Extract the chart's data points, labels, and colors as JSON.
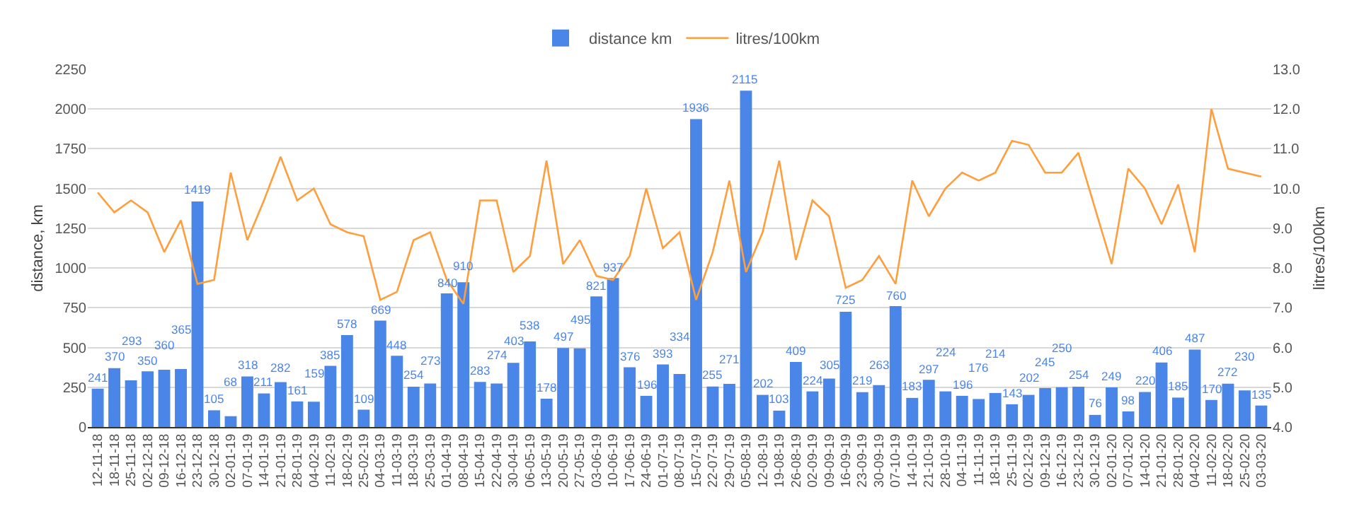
{
  "chart_data": {
    "type": "bar",
    "categories": [
      "12-11-18",
      "18-11-18",
      "25-11-18",
      "02-12-18",
      "09-12-18",
      "16-12-18",
      "23-12-18",
      "30-12-18",
      "02-01-19",
      "07-01-19",
      "14-01-19",
      "21-01-19",
      "28-01-19",
      "04-02-19",
      "11-02-19",
      "18-02-19",
      "25-02-19",
      "04-03-19",
      "11-03-19",
      "18-03-19",
      "25-03-19",
      "01-04-19",
      "08-04-19",
      "15-04-19",
      "22-04-19",
      "30-04-19",
      "06-05-19",
      "13-05-19",
      "20-05-19",
      "27-05-19",
      "03-06-19",
      "10-06-19",
      "17-06-19",
      "24-06-19",
      "01-07-19",
      "08-07-19",
      "15-07-19",
      "22-07-19",
      "29-07-19",
      "05-08-19",
      "12-08-19",
      "19-08-19",
      "26-08-19",
      "02-09-19",
      "09-09-19",
      "16-09-19",
      "23-09-19",
      "30-09-19",
      "07-10-19",
      "14-10-19",
      "21-10-19",
      "28-10-19",
      "04-11-19",
      "11-11-19",
      "18-11-19",
      "25-11-19",
      "02-12-19",
      "09-12-19",
      "16-12-19",
      "23-12-19",
      "30-12-19",
      "02-01-20",
      "07-01-20",
      "14-01-20",
      "21-01-20",
      "28-01-20",
      "04-02-20",
      "11-02-20",
      "18-02-20",
      "25-02-20",
      "03-03-20"
    ],
    "series": [
      {
        "name": "distance km",
        "color": "#4a86e8",
        "values": [
          241,
          370,
          293,
          350,
          360,
          365,
          1419,
          105,
          68,
          318,
          211,
          282,
          161,
          159,
          385,
          578,
          109,
          669,
          448,
          254,
          273,
          840,
          910,
          283,
          274,
          403,
          538,
          178,
          497,
          495,
          821,
          937,
          376,
          196,
          393,
          334,
          1936,
          255,
          271,
          2115,
          202,
          103,
          409,
          224,
          305,
          725,
          219,
          263,
          760,
          183,
          297,
          224,
          196,
          176,
          214,
          143,
          202,
          245,
          250,
          254,
          76,
          249,
          98,
          220,
          406,
          185,
          487,
          170,
          272,
          230,
          135
        ],
        "value_labels": [
          "241",
          "370",
          "293",
          "350",
          "360",
          "365",
          "1419",
          "105",
          "68",
          "318",
          "211",
          "282",
          "161",
          "159",
          "385",
          "578",
          "109",
          "669",
          "448",
          "254",
          "273",
          "840",
          "910",
          "283",
          "274",
          "403",
          "538",
          "178",
          "497",
          "495",
          "821",
          "937",
          "376",
          "196",
          "393",
          "334",
          "1936",
          "255",
          "271",
          "2115",
          "202",
          "103",
          "409",
          "224",
          "305",
          "725",
          "219",
          "263",
          "760",
          "183",
          "297",
          "224",
          "196",
          "176",
          "214",
          "143",
          "202",
          "245",
          "250",
          "254",
          "76",
          "249",
          "98",
          "220",
          "406",
          "185",
          "487",
          "170",
          "272",
          "230",
          "135"
        ]
      },
      {
        "name": "litres/100km",
        "type": "line",
        "axis": "y2",
        "color": "#ff9e3d",
        "values": [
          9.9,
          9.4,
          9.7,
          9.4,
          8.4,
          9.2,
          7.6,
          7.7,
          10.4,
          8.7,
          9.7,
          10.8,
          9.7,
          10.0,
          9.1,
          8.9,
          8.8,
          7.2,
          7.4,
          8.7,
          8.9,
          7.7,
          7.1,
          9.7,
          9.7,
          7.9,
          8.3,
          10.7,
          8.1,
          8.7,
          7.8,
          7.7,
          8.3,
          10.0,
          8.5,
          8.9,
          7.2,
          8.4,
          10.2,
          7.9,
          8.9,
          10.7,
          8.2,
          9.7,
          9.3,
          7.5,
          7.7,
          8.3,
          7.6,
          10.2,
          9.3,
          10.0,
          10.4,
          10.2,
          10.4,
          11.2,
          11.1,
          10.4,
          10.4,
          10.9,
          9.5,
          8.1,
          10.5,
          10.0,
          9.1,
          10.1,
          8.4,
          12.0,
          10.5,
          10.4,
          10.3
        ]
      }
    ],
    "ylabel": "distance, km",
    "y2label": "litres/100km",
    "ylim": [
      0,
      2250
    ],
    "yticks": [
      0,
      250,
      500,
      750,
      1000,
      1250,
      1500,
      1750,
      2000,
      2250
    ],
    "y2lim": [
      4,
      13
    ],
    "y2ticks": [
      {
        "value": 4,
        "label": "4.0"
      },
      {
        "value": 5,
        "label": "5.0"
      },
      {
        "value": 6,
        "label": "6.0"
      },
      {
        "value": 7,
        "label": "7.0"
      },
      {
        "value": 8,
        "label": "8.0"
      },
      {
        "value": 9,
        "label": "9.0"
      },
      {
        "value": 10,
        "label": "10.0"
      },
      {
        "value": 11,
        "label": "11.0"
      },
      {
        "value": 12,
        "label": "12.0"
      },
      {
        "value": 13,
        "label": "13.0"
      }
    ],
    "grid": "y",
    "legend": "top",
    "marker": "none"
  }
}
